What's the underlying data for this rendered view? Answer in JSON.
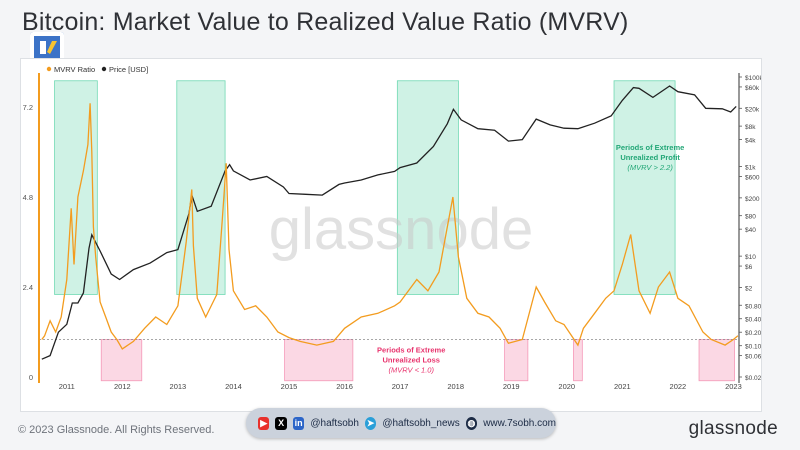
{
  "title": "Bitcoin: Market Value to Realized Value Ratio (MVRV)",
  "copyright": "© 2023 Glassnode. All Rights Reserved.",
  "brand": "glassnode",
  "watermark": "glassnode",
  "social": {
    "handle1": "@haftsobh",
    "handle2": "@haftsobh_news",
    "website": "www.7sobh.com"
  },
  "colors": {
    "mvrv": "#f39c1f",
    "price": "#222222",
    "profit": "#23c48a",
    "loss": "#f06292",
    "axis": "#f39c1f"
  },
  "chart_data": {
    "type": "line",
    "legend": [
      {
        "name": "MVRV Ratio",
        "color": "#f39c1f"
      },
      {
        "name": "Price [USD]",
        "color": "#222222"
      }
    ],
    "legend_position": "top-left",
    "x_ticks": [
      "2011",
      "2012",
      "2013",
      "2014",
      "2015",
      "2016",
      "2017",
      "2018",
      "2019",
      "2020",
      "2021",
      "2022",
      "2023"
    ],
    "xlim": [
      2010.5,
      2023.1
    ],
    "y_left": {
      "ticks": [
        "0",
        "2.4",
        "4.8",
        "7.2"
      ],
      "ylim": [
        0,
        8.0
      ],
      "scale": "linear"
    },
    "y_right": {
      "scale": "log",
      "ticks": [
        "$0.02",
        "$0.06",
        "$0.10",
        "$0.20",
        "$0.40",
        "$0.80",
        "$2",
        "$6",
        "$10",
        "$40",
        "$80",
        "$200",
        "$600",
        "$1k",
        "$4k",
        "$8k",
        "$20k",
        "$60k",
        "$100k"
      ]
    },
    "reference_line": 1.0,
    "series": [
      {
        "name": "MVRV Ratio",
        "x": [
          2010.55,
          2010.6,
          2010.7,
          2010.8,
          2010.9,
          2011.0,
          2011.08,
          2011.13,
          2011.2,
          2011.3,
          2011.38,
          2011.42,
          2011.45,
          2011.48,
          2011.52,
          2011.6,
          2011.7,
          2011.8,
          2011.9,
          2012.0,
          2012.2,
          2012.4,
          2012.6,
          2012.8,
          2013.0,
          2013.15,
          2013.25,
          2013.28,
          2013.35,
          2013.5,
          2013.7,
          2013.8,
          2013.87,
          2013.92,
          2014.0,
          2014.2,
          2014.4,
          2014.6,
          2014.8,
          2015.0,
          2015.2,
          2015.5,
          2015.8,
          2016.0,
          2016.3,
          2016.6,
          2016.9,
          2017.0,
          2017.3,
          2017.5,
          2017.7,
          2017.85,
          2017.95,
          2018.05,
          2018.2,
          2018.4,
          2018.6,
          2018.8,
          2018.95,
          2019.2,
          2019.45,
          2019.6,
          2019.8,
          2019.95,
          2020.2,
          2020.3,
          2020.5,
          2020.7,
          2020.85,
          2021.0,
          2021.15,
          2021.3,
          2021.5,
          2021.65,
          2021.85,
          2022.0,
          2022.2,
          2022.45,
          2022.6,
          2022.85,
          2023.0,
          2023.08
        ],
        "values": [
          1.0,
          1.1,
          1.5,
          1.2,
          1.6,
          2.6,
          4.5,
          3.0,
          4.8,
          5.5,
          6.2,
          7.3,
          6.0,
          4.0,
          3.2,
          2.0,
          1.6,
          1.2,
          1.0,
          0.75,
          0.95,
          1.3,
          1.6,
          1.4,
          1.9,
          3.6,
          5.0,
          3.5,
          2.1,
          1.6,
          2.2,
          4.2,
          5.7,
          3.4,
          2.3,
          1.8,
          1.9,
          1.6,
          1.2,
          1.05,
          0.95,
          0.85,
          0.95,
          1.3,
          1.6,
          1.7,
          1.9,
          2.0,
          2.6,
          2.3,
          2.8,
          4.0,
          4.8,
          3.2,
          2.1,
          1.7,
          1.6,
          1.3,
          0.9,
          1.0,
          2.4,
          2.0,
          1.5,
          1.4,
          0.85,
          1.3,
          1.7,
          2.1,
          2.3,
          3.0,
          3.8,
          2.3,
          1.7,
          2.4,
          2.8,
          2.1,
          1.9,
          1.2,
          1.0,
          0.85,
          1.0,
          1.1
        ]
      },
      {
        "name": "Price [USD]",
        "x": [
          2010.55,
          2010.7,
          2010.85,
          2011.0,
          2011.1,
          2011.2,
          2011.3,
          2011.4,
          2011.45,
          2011.6,
          2011.8,
          2011.95,
          2012.2,
          2012.5,
          2012.8,
          2013.0,
          2013.2,
          2013.25,
          2013.35,
          2013.6,
          2013.85,
          2013.93,
          2014.0,
          2014.3,
          2014.6,
          2014.9,
          2015.0,
          2015.3,
          2015.6,
          2015.9,
          2016.0,
          2016.3,
          2016.6,
          2016.9,
          2017.0,
          2017.3,
          2017.6,
          2017.85,
          2017.96,
          2018.1,
          2018.4,
          2018.7,
          2018.95,
          2019.2,
          2019.45,
          2019.7,
          2019.95,
          2020.2,
          2020.5,
          2020.8,
          2021.0,
          2021.2,
          2021.3,
          2021.55,
          2021.85,
          2022.0,
          2022.3,
          2022.5,
          2022.8,
          2022.95,
          2023.05
        ],
        "values": [
          0.05,
          0.06,
          0.2,
          0.3,
          0.9,
          0.9,
          1.5,
          15,
          30,
          13,
          4,
          3,
          5,
          7,
          12,
          14,
          90,
          230,
          100,
          130,
          800,
          1100,
          800,
          500,
          600,
          350,
          250,
          240,
          230,
          400,
          430,
          500,
          650,
          780,
          950,
          1200,
          2800,
          9000,
          19000,
          11000,
          7000,
          6500,
          3700,
          4000,
          11500,
          8500,
          7200,
          7000,
          9300,
          13500,
          30000,
          58000,
          56000,
          35000,
          63000,
          47000,
          40000,
          20000,
          19500,
          16500,
          22000
        ]
      }
    ],
    "annotations": [
      {
        "text_lines": [
          "Periods of Extreme",
          "Unrealized Profit"
        ],
        "sub": "(MVRV > 2.2)",
        "color": "#23a777"
      },
      {
        "text_lines": [
          "Periods of Extreme",
          "Unrealized Loss"
        ],
        "sub": "(MVRV < 1.0)",
        "color": "#e8336d"
      }
    ],
    "profit_zones": [
      [
        2010.78,
        2011.55
      ],
      [
        2012.98,
        2013.85
      ],
      [
        2016.95,
        2018.05
      ],
      [
        2020.85,
        2021.95
      ]
    ],
    "loss_zones": [
      [
        2011.62,
        2012.35
      ],
      [
        2014.92,
        2016.15
      ],
      [
        2018.88,
        2019.3
      ],
      [
        2020.12,
        2020.28
      ],
      [
        2022.38,
        2023.02
      ]
    ]
  }
}
